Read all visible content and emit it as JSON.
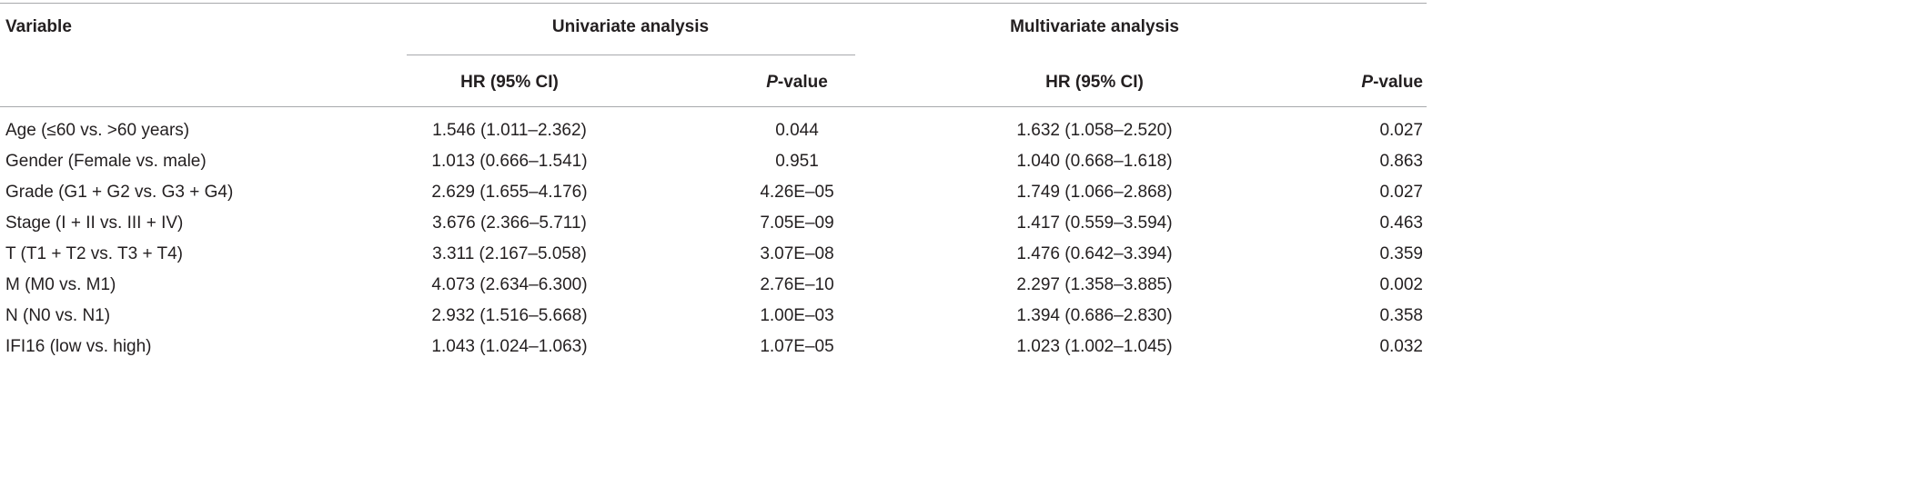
{
  "header": {
    "variable": "Variable",
    "univariate": "Univariate analysis",
    "multivariate": "Multivariate analysis",
    "hr": "HR (95% CI)",
    "p_italic": "P",
    "p_rest": "-value"
  },
  "rows": [
    {
      "variable": "Age (≤60 vs. >60 years)",
      "uni_hr": "1.546 (1.011–2.362)",
      "uni_p": "0.044",
      "multi_hr": "1.632 (1.058–2.520)",
      "multi_p": "0.027"
    },
    {
      "variable": "Gender (Female vs. male)",
      "uni_hr": "1.013 (0.666–1.541)",
      "uni_p": "0.951",
      "multi_hr": "1.040 (0.668–1.618)",
      "multi_p": "0.863"
    },
    {
      "variable": "Grade (G1 + G2 vs. G3 + G4)",
      "uni_hr": "2.629 (1.655–4.176)",
      "uni_p": "4.26E–05",
      "multi_hr": "1.749 (1.066–2.868)",
      "multi_p": "0.027"
    },
    {
      "variable": "Stage (I + II vs. III + IV)",
      "uni_hr": "3.676 (2.366–5.711)",
      "uni_p": "7.05E–09",
      "multi_hr": "1.417 (0.559–3.594)",
      "multi_p": "0.463"
    },
    {
      "variable": "T (T1 + T2 vs. T3 + T4)",
      "uni_hr": "3.311 (2.167–5.058)",
      "uni_p": "3.07E–08",
      "multi_hr": "1.476 (0.642–3.394)",
      "multi_p": "0.359"
    },
    {
      "variable": "M (M0 vs. M1)",
      "uni_hr": "4.073 (2.634–6.300)",
      "uni_p": "2.76E–10",
      "multi_hr": "2.297 (1.358–3.885)",
      "multi_p": "0.002"
    },
    {
      "variable": "N (N0 vs. N1)",
      "uni_hr": "2.932 (1.516–5.668)",
      "uni_p": "1.00E–03",
      "multi_hr": "1.394 (0.686–2.830)",
      "multi_p": "0.358"
    },
    {
      "variable": "IFI16 (low vs. high)",
      "uni_hr": "1.043 (1.024–1.063)",
      "uni_p": "1.07E–05",
      "multi_hr": "1.023 (1.002–1.045)",
      "multi_p": "0.032"
    }
  ]
}
